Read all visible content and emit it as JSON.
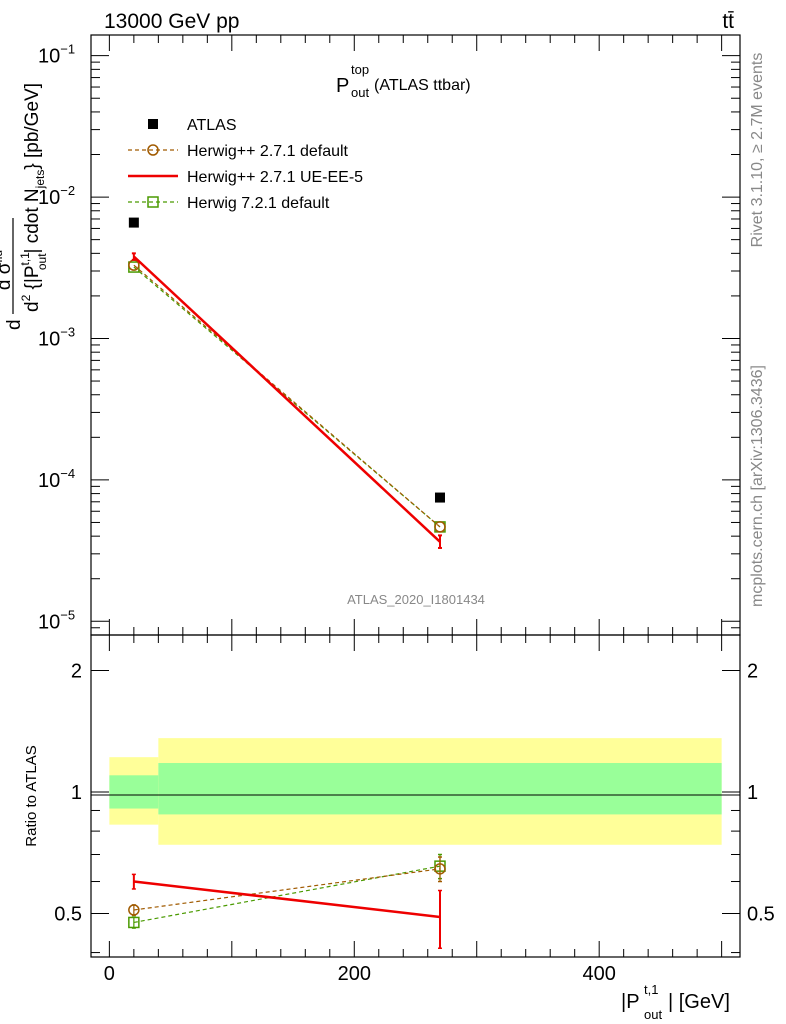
{
  "header": {
    "energy_label": "13000 GeV pp",
    "process_label": "tt̄"
  },
  "side": {
    "rivet_label": "Rivet 3.1.10, ≥ 2.7M events",
    "mcplots_label": "mcplots.cern.ch [arXiv:1306.3436]"
  },
  "main_plot": {
    "title_main": "P",
    "title_sup": "top",
    "title_sub": "out",
    "title_suffix": " (ATLAS ttbar)",
    "analysis_id": "ATLAS_2020_I1801434",
    "ylabel": "d σ^fid / d² {|P_out^{t,1}| cdot N_jets} [pb/GeV]",
    "ylabel_parts": {
      "d_top": "d",
      "sigma": "d σ",
      "sigma_sup": "fid",
      "denom_a": "d",
      "denom_sup2": "2",
      "denom_b": " {|P",
      "denom_sup_t": "t,1",
      "denom_sub_out": "out",
      "denom_c": "| cdot N",
      "denom_sub_jets": "jets",
      "denom_d": "} [pb/GeV]"
    },
    "y_ticks": [
      {
        "base": "10",
        "exp": "−1",
        "value": 0.1
      },
      {
        "base": "10",
        "exp": "−2",
        "value": 0.01
      },
      {
        "base": "10",
        "exp": "−3",
        "value": 0.001
      },
      {
        "base": "10",
        "exp": "−4",
        "value": 0.0001
      },
      {
        "base": "10",
        "exp": "−5",
        "value": 1e-05
      }
    ]
  },
  "legend": [
    {
      "label": "ATLAS",
      "color": "#000000",
      "marker": "square-filled",
      "line": "none"
    },
    {
      "label": "Herwig++ 2.7.1 default",
      "color": "#a05a00",
      "marker": "circle-open",
      "line": "dashed"
    },
    {
      "label": "Herwig++ 2.7.1 UE-EE-5",
      "color": "#ee0000",
      "marker": "none",
      "line": "solid"
    },
    {
      "label": "Herwig 7.2.1 default",
      "color": "#4a9a00",
      "marker": "square-open",
      "line": "dashed"
    }
  ],
  "ratio_plot": {
    "ylabel": "Ratio to ATLAS",
    "y_ticks": [
      "0.5",
      "1",
      "2"
    ]
  },
  "x_axis": {
    "label_main": "|P",
    "label_sup": "t,1",
    "label_sub": "out",
    "label_suffix": "| [GeV]",
    "ticks": [
      "0",
      "200",
      "400"
    ]
  },
  "chart_data": {
    "type": "scatter",
    "xlim": [
      -15,
      515
    ],
    "main": {
      "yscale": "log",
      "ylim": [
        8e-06,
        0.14
      ],
      "bins": [
        [
          0,
          40
        ],
        [
          40,
          500
        ]
      ],
      "x": [
        20,
        270
      ],
      "series": [
        {
          "name": "ATLAS",
          "values": [
            0.0066,
            7.5e-05
          ],
          "color": "#000000"
        },
        {
          "name": "Herwig++ 2.7.1 default",
          "values": [
            0.0033,
            4.65e-05
          ],
          "color": "#a05a00"
        },
        {
          "name": "Herwig++ 2.7.1 UE-EE-5",
          "values": [
            0.0038,
            3.65e-05
          ],
          "err_lo": [
            0.0036,
            3.3e-05
          ],
          "err_hi": [
            0.004,
            4.05e-05
          ],
          "color": "#ee0000"
        },
        {
          "name": "Herwig 7.2.1 default",
          "values": [
            0.0032,
            4.65e-05
          ],
          "color": "#4a9a00"
        }
      ]
    },
    "ratio": {
      "ylim": [
        0.39,
        2.45
      ],
      "bands": [
        {
          "x": [
            0,
            40
          ],
          "yellow": [
            0.83,
            1.22
          ],
          "green": [
            0.91,
            1.1
          ]
        },
        {
          "x": [
            40,
            500
          ],
          "yellow": [
            0.74,
            1.36
          ],
          "green": [
            0.88,
            1.18
          ]
        }
      ],
      "series": [
        {
          "name": "Herwig++ 2.7.1 default",
          "values": [
            0.51,
            0.645
          ],
          "err_lo": [
            0.495,
            0.6
          ],
          "err_hi": [
            0.525,
            0.69
          ],
          "color": "#a05a00"
        },
        {
          "name": "Herwig++ 2.7.1 UE-EE-5",
          "values": [
            0.6,
            0.49
          ],
          "err_lo": [
            0.575,
            0.41
          ],
          "err_hi": [
            0.625,
            0.57
          ],
          "color": "#ee0000"
        },
        {
          "name": "Herwig 7.2.1 default",
          "values": [
            0.475,
            0.655
          ],
          "err_lo": [
            0.46,
            0.61
          ],
          "err_hi": [
            0.49,
            0.7
          ],
          "color": "#4a9a00"
        }
      ]
    },
    "grid": false,
    "legend_position": "top-left"
  }
}
